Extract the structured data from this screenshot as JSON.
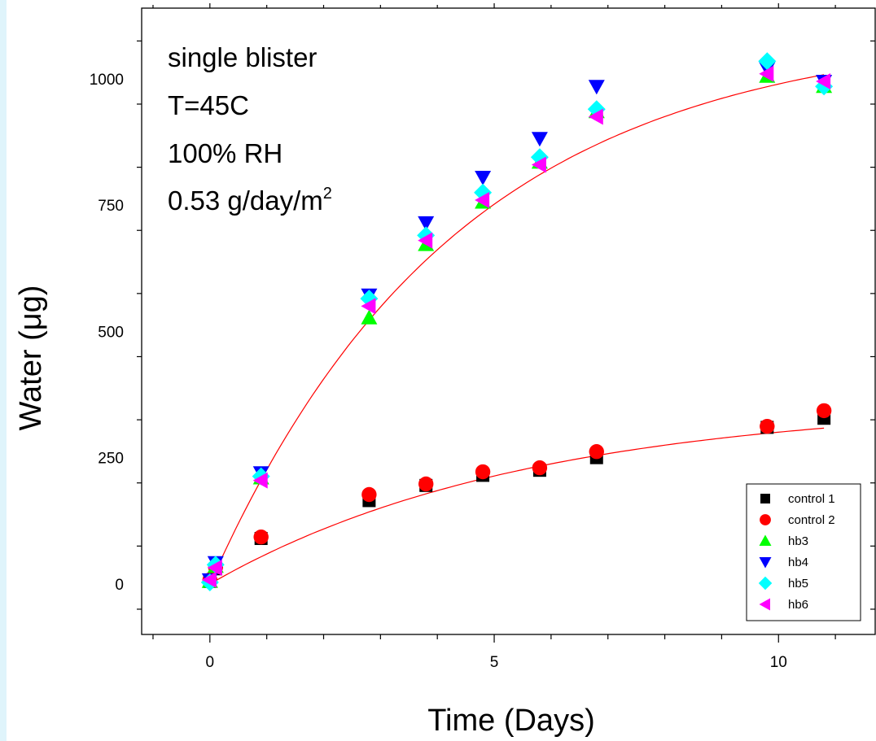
{
  "chart_data": {
    "type": "scatter",
    "xlabel": "Time (Days)",
    "ylabel": "Water (μg)",
    "xlim": [
      -1.2,
      11.7
    ],
    "ylim": [
      -100,
      1140
    ],
    "xticks": [
      0,
      5,
      10
    ],
    "xtick_labels": [
      "0",
      "5",
      "10"
    ],
    "yticks": [
      0,
      250,
      500,
      750,
      1000
    ],
    "ytick_labels": [
      "0",
      "250",
      "500",
      "750",
      "1000"
    ],
    "grid": false,
    "legend_position": "bottom-right",
    "annotations": [
      "single blister",
      "T=45C",
      "100% RH",
      "0.53 g/day/m",
      "2"
    ],
    "series": [
      {
        "name": "control 1",
        "marker": "square",
        "color": "#000000",
        "x": [
          0,
          0.1,
          0.9,
          2.8,
          3.8,
          4.8,
          5.8,
          6.8,
          9.8,
          10.8
        ],
        "y": [
          5,
          30,
          90,
          165,
          195,
          215,
          225,
          250,
          310,
          328
        ]
      },
      {
        "name": "control 2",
        "marker": "circle",
        "color": "#ff0000",
        "x": [
          0,
          0.1,
          0.9,
          2.8,
          3.8,
          4.8,
          5.8,
          6.8,
          9.8,
          10.8
        ],
        "y": [
          8,
          33,
          93,
          177,
          198,
          222,
          230,
          262,
          312,
          343
        ]
      },
      {
        "name": "hb3",
        "marker": "triangle-up",
        "color": "#00ff00",
        "x": [
          0,
          0.1,
          0.9,
          2.8,
          3.8,
          4.8,
          5.8,
          6.8,
          9.8,
          10.8
        ],
        "y": [
          5,
          35,
          210,
          527,
          672,
          756,
          835,
          935,
          1005,
          985
        ]
      },
      {
        "name": "hb4",
        "marker": "triangle-down",
        "color": "#0000ff",
        "x": [
          0,
          0.1,
          0.9,
          2.8,
          3.8,
          4.8,
          5.8,
          6.8,
          9.8,
          10.8
        ],
        "y": [
          8,
          42,
          220,
          572,
          715,
          805,
          882,
          985,
          1020,
          995
        ]
      },
      {
        "name": "hb5",
        "marker": "diamond",
        "color": "#00ffff",
        "x": [
          0,
          0.1,
          0.9,
          2.8,
          3.8,
          4.8,
          5.8,
          6.8,
          9.8,
          10.8
        ],
        "y": [
          3,
          38,
          213,
          565,
          690,
          775,
          845,
          940,
          1035,
          985
        ]
      },
      {
        "name": "hb6",
        "marker": "triangle-left",
        "color": "#ff00ff",
        "x": [
          0,
          0.1,
          0.9,
          2.8,
          3.8,
          4.8,
          5.8,
          6.8,
          9.8,
          10.8
        ],
        "y": [
          8,
          32,
          205,
          550,
          680,
          760,
          830,
          925,
          1010,
          995
        ]
      }
    ],
    "fits": [
      {
        "color": "#ff0000",
        "asymptote": 1100,
        "rate": 0.23,
        "x_end": 10.8
      },
      {
        "color": "#ff0000",
        "asymptote": 360,
        "rate": 0.18,
        "x_end": 10.8
      }
    ]
  }
}
